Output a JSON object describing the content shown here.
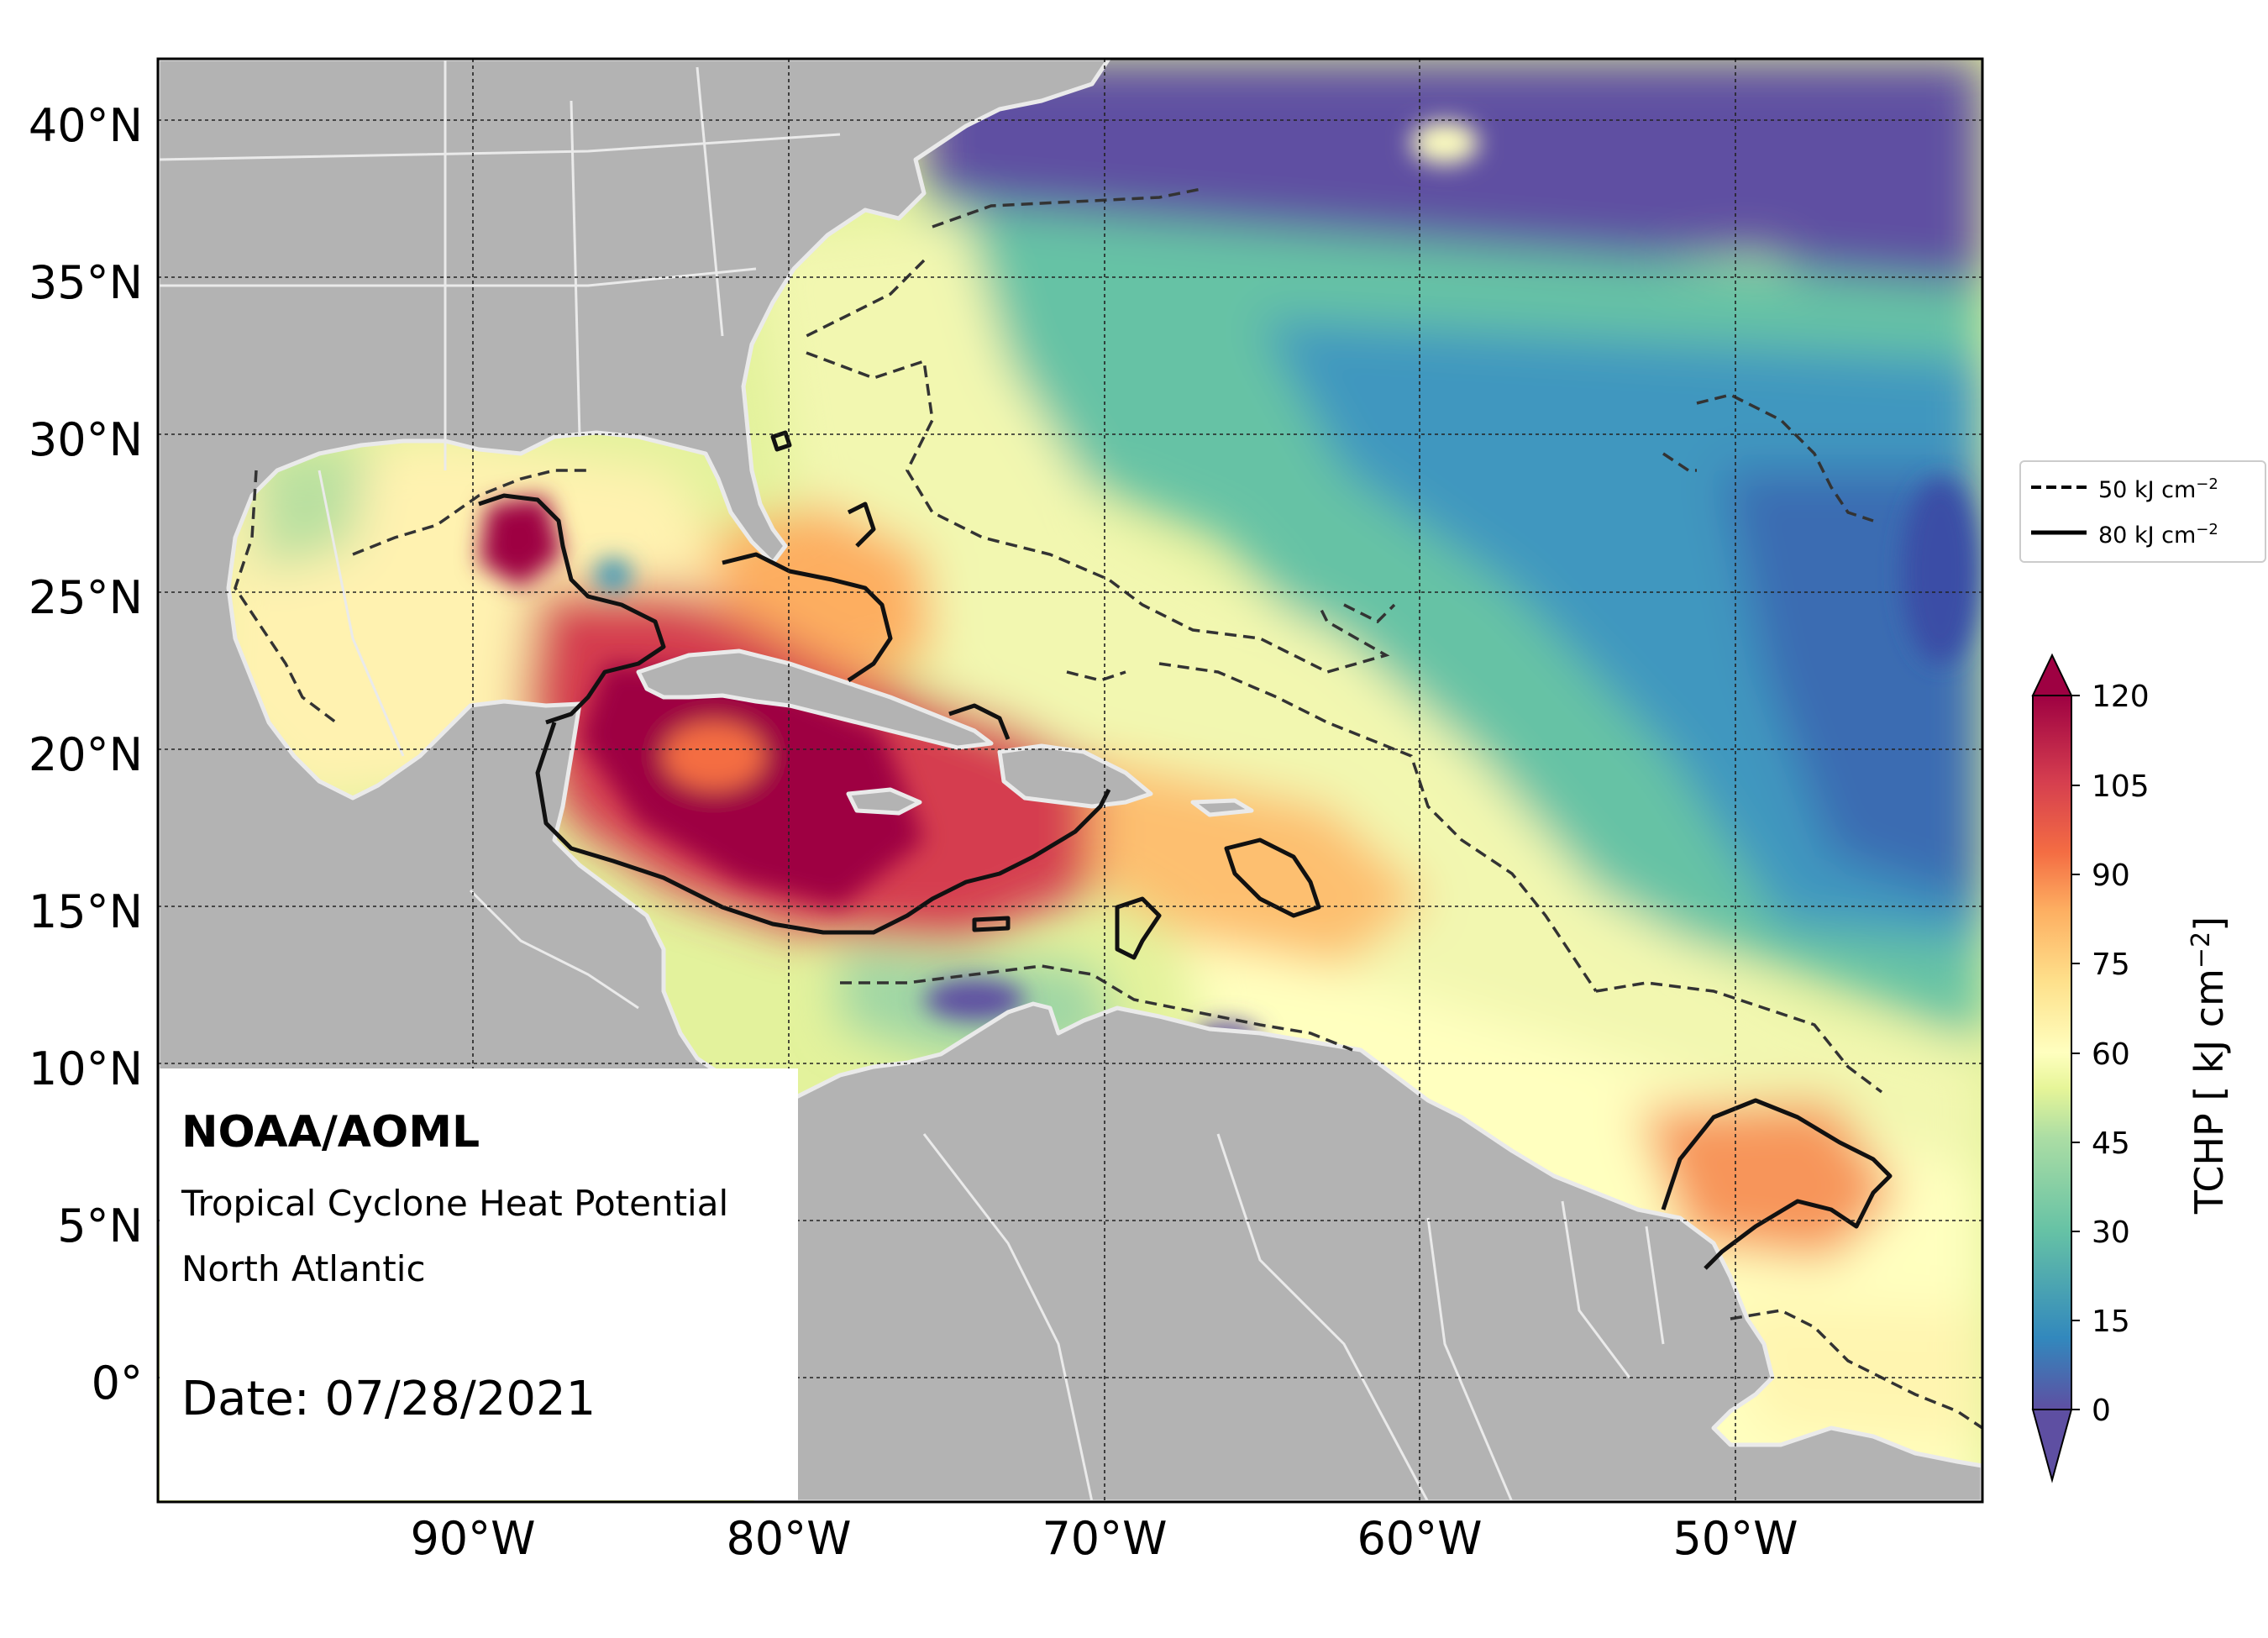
{
  "map": {
    "lat_ticks": [
      "40°N",
      "35°N",
      "30°N",
      "25°N",
      "20°N",
      "15°N",
      "10°N",
      "5°N",
      "0°"
    ],
    "lon_ticks": [
      "90°W",
      "80°W",
      "70°W",
      "60°W",
      "50°W"
    ],
    "colors": {
      "land": "#b3b3b3",
      "coast": "#e6e6e6",
      "ocean_scale": [
        "#5e4fa2",
        "#3288bd",
        "#66c2a5",
        "#abdda4",
        "#e6f598",
        "#ffffbf",
        "#fee08b",
        "#fdae61",
        "#f46d43",
        "#d53e4f",
        "#9e0142"
      ]
    }
  },
  "annotation": {
    "brand": "NOAA/AOML",
    "product": "Tropical Cyclone Heat Potential",
    "region": "North Atlantic",
    "date": "Date: 07/28/2021"
  },
  "legend": {
    "dashed_label": "50 kJ cm",
    "solid_label": "80 kJ cm",
    "exponent": "−2"
  },
  "colorbar": {
    "title_prefix": "TCHP [ kJ cm",
    "title_exponent": "−2",
    "title_suffix": "]",
    "ticks": [
      "120",
      "105",
      "90",
      "75",
      "60",
      "45",
      "30",
      "15",
      "0"
    ]
  }
}
